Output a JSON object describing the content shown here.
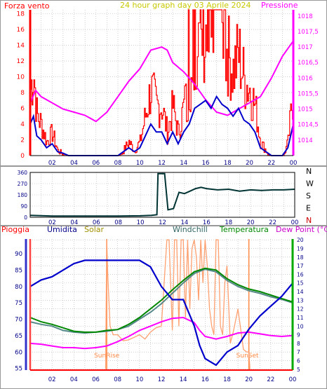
{
  "header": {
    "left_title": "Forza vento",
    "center_title": "24 hour graph day   03 Aprile 2024",
    "right_title": "Pressione"
  },
  "colors": {
    "wind_speed": "#ff0000",
    "wind_avg": "#0000cc",
    "pressure": "#ff00ff",
    "direction": "#003333",
    "humidity": "#0000cc",
    "solar": "#ffa070",
    "windchill": "#558888",
    "temperature": "#008800",
    "dew_point": "#ff00ff",
    "rain": "#ff0000",
    "border": "#999999",
    "grid": "#b0b0b0",
    "title_yellow": "#c8c800"
  },
  "chart_data": [
    {
      "type": "line",
      "name": "wind-pressure",
      "x_ticks": [
        "02",
        "04",
        "06",
        "08",
        "10",
        "12",
        "14",
        "16",
        "18",
        "20",
        "22",
        "00"
      ],
      "y_left_ticks": [
        "0",
        "2",
        "4",
        "6",
        "8",
        "10",
        "12",
        "14",
        "16",
        "18"
      ],
      "ylim_left": [
        0,
        18.5
      ],
      "y_right_ticks": [
        "1014",
        "1014,5",
        "1015",
        "1015,5",
        "1016",
        "1016,5",
        "1017",
        "1017,5",
        "1018"
      ],
      "ylim_right": [
        1013.5,
        1018.2
      ],
      "series": [
        {
          "key": "wind_avg",
          "axis": "left",
          "x": [
            0,
            0.3,
            0.6,
            1,
            1.5,
            2,
            2.5,
            3,
            3.5,
            4,
            5,
            6,
            7,
            8,
            8.5,
            9,
            9.5,
            10,
            10.5,
            11,
            11.5,
            12,
            12.5,
            13,
            13.5,
            14,
            14.5,
            15,
            15.5,
            16,
            16.5,
            17,
            17.5,
            18,
            18.5,
            19,
            19.5,
            20,
            20.5,
            21,
            22,
            23,
            23.5,
            24
          ],
          "y": [
            4,
            5,
            2.5,
            2,
            1,
            1.5,
            0.5,
            0.3,
            0,
            0,
            0,
            0,
            0,
            0,
            0.5,
            1,
            0.5,
            1,
            2.5,
            4,
            3,
            3,
            1.5,
            3,
            1.5,
            3,
            4,
            6,
            6.5,
            7,
            6,
            7.5,
            6.5,
            6,
            5,
            6,
            4.5,
            4,
            3,
            1,
            0,
            0,
            1,
            4
          ]
        },
        {
          "key": "pressure",
          "axis": "right",
          "x": [
            0,
            0.5,
            1,
            2,
            3,
            4,
            5,
            6,
            7,
            8,
            9,
            10,
            11,
            12,
            12.5,
            13,
            14,
            15,
            16,
            17,
            18,
            19,
            20,
            21,
            22,
            23,
            24
          ],
          "y": [
            1015.2,
            1015.6,
            1015.4,
            1015.2,
            1015.0,
            1014.9,
            1014.8,
            1014.6,
            1014.9,
            1015.4,
            1015.9,
            1016.3,
            1016.9,
            1017.0,
            1016.9,
            1016.5,
            1016.2,
            1015.8,
            1015.3,
            1014.9,
            1014.8,
            1015.0,
            1015.2,
            1015.4,
            1016.0,
            1016.7,
            1017.2
          ]
        }
      ]
    },
    {
      "type": "line",
      "name": "wind-direction",
      "x_ticks": [
        "02",
        "04",
        "06",
        "08",
        "10",
        "12",
        "14",
        "16",
        "18",
        "20",
        "22",
        "00"
      ],
      "y_ticks": [
        "0",
        "90",
        "180",
        "270",
        "360"
      ],
      "compass": [
        "N",
        "W",
        "S",
        "E",
        "N"
      ],
      "ylim": [
        0,
        360
      ],
      "series": [
        {
          "key": "direction",
          "x": [
            0,
            2,
            4,
            6,
            8,
            10,
            11,
            11.5,
            11.6,
            12.2,
            12.5,
            13,
            13.5,
            14,
            14.5,
            15,
            15.5,
            16,
            17,
            18,
            19,
            20,
            21,
            22,
            23,
            24
          ],
          "y": [
            15,
            10,
            10,
            10,
            10,
            12,
            15,
            20,
            350,
            350,
            60,
            70,
            200,
            190,
            210,
            230,
            240,
            230,
            220,
            225,
            210,
            220,
            215,
            220,
            220,
            225
          ]
        }
      ]
    },
    {
      "type": "line",
      "name": "humidity-temperature",
      "x_ticks": [
        "02",
        "04",
        "06",
        "08",
        "10",
        "12",
        "14",
        "16",
        "18",
        "20",
        "22",
        "00"
      ],
      "y_left_ticks": [
        "55",
        "60",
        "65",
        "70",
        "75",
        "80",
        "85",
        "90"
      ],
      "ylim_left": [
        54.5,
        94.5
      ],
      "y_right_ticks": [
        "5",
        "6",
        "7",
        "8",
        "9",
        "10",
        "11",
        "12",
        "13",
        "14",
        "15",
        "16",
        "17",
        "18",
        "19",
        "20"
      ],
      "ylim_right": [
        4.9,
        20.1
      ],
      "labels": {
        "pioggia": "Pioggia",
        "umidita": "Umidita",
        "solar": "Solar",
        "windchill": "Windchill",
        "temperatura": "Temperatura",
        "dew_point": "Dew Point (°C)",
        "sunrise": "SunRise",
        "sunset": "SunSet"
      },
      "sunrise_x": 7,
      "sunset_x": 20,
      "series": [
        {
          "key": "humidity",
          "axis": "left",
          "x": [
            0,
            1,
            2,
            3,
            4,
            5,
            6,
            7,
            8,
            9,
            10,
            11,
            12,
            12.5,
            13,
            14,
            15,
            15.5,
            16,
            16.5,
            17,
            18,
            19,
            20,
            21,
            22,
            23,
            24
          ],
          "y": [
            80,
            82,
            83,
            85,
            87,
            88,
            88,
            88,
            88,
            88,
            88,
            86,
            80,
            78,
            76,
            76,
            68,
            62,
            58,
            57,
            56,
            60,
            62,
            67,
            71,
            74,
            77,
            81
          ]
        },
        {
          "key": "temperature",
          "axis": "right",
          "x": [
            0,
            1,
            2,
            3,
            4,
            5,
            6,
            7,
            8,
            9,
            10,
            11,
            12,
            13,
            14,
            15,
            16,
            17,
            18,
            19,
            20,
            21,
            22,
            23,
            24
          ],
          "y": [
            11,
            10.5,
            10.2,
            9.8,
            9.4,
            9.3,
            9.3,
            9.5,
            9.6,
            10.2,
            11,
            12,
            13,
            14.2,
            15.3,
            16.3,
            16.7,
            16.5,
            15.5,
            14.8,
            14.3,
            14,
            13.6,
            13.2,
            12.8
          ]
        },
        {
          "key": "windchill",
          "axis": "right",
          "x": [
            0,
            1,
            2,
            3,
            4,
            5,
            6,
            7,
            8,
            9,
            10,
            11,
            12,
            13,
            14,
            15,
            16,
            17,
            18,
            19,
            20,
            21,
            22,
            23,
            24
          ],
          "y": [
            10.5,
            10.2,
            10,
            9.5,
            9.3,
            9.2,
            9.3,
            9.4,
            9.6,
            10,
            10.8,
            11.6,
            12.6,
            13.8,
            15,
            16.1,
            16.6,
            16.3,
            15.3,
            14.6,
            14.1,
            13.8,
            13.4,
            13.1,
            12.7
          ]
        },
        {
          "key": "dew_point",
          "axis": "right",
          "x": [
            0,
            1,
            2,
            3,
            4,
            5,
            6,
            7,
            8,
            9,
            10,
            11,
            12,
            13,
            14,
            15,
            15.5,
            16,
            17,
            18,
            19,
            20,
            21,
            22,
            23,
            24
          ],
          "y": [
            8,
            7.9,
            7.7,
            7.5,
            7.5,
            7.4,
            7.5,
            7.7,
            8.2,
            8.8,
            9.5,
            10,
            10.5,
            10.9,
            11,
            10.4,
            9.5,
            8.8,
            8.5,
            8.8,
            9.2,
            9.3,
            9.1,
            8.9,
            8.8,
            8.9
          ]
        },
        {
          "key": "solar",
          "axis": "right",
          "x": [
            6.9,
            7,
            7.1,
            7.3,
            7.6,
            8,
            8.5,
            9,
            9.5,
            10,
            10.5,
            11,
            11.5,
            12,
            12.5,
            12.7,
            13,
            13.2,
            13.4,
            13.6,
            13.8,
            14,
            14.2,
            14.4,
            14.6,
            14.8,
            15,
            15.2,
            15.4,
            15.6,
            15.8,
            16,
            16.2,
            16.4,
            16.6,
            16.8,
            17,
            17.2,
            17.4,
            17.6,
            17.8,
            18,
            18.3,
            18.6,
            19,
            19.5,
            19.8,
            20,
            20.1
          ],
          "y": [
            5,
            20,
            16,
            10,
            9,
            9,
            8.3,
            8.4,
            8.7,
            9,
            8.5,
            9.3,
            9.8,
            10,
            20,
            20,
            9.5,
            20,
            20,
            10,
            20,
            20,
            11,
            20,
            12,
            19,
            20,
            18,
            13,
            20,
            15,
            20,
            17,
            12,
            10,
            9,
            20,
            20,
            10,
            9,
            15,
            17,
            8,
            9.5,
            12,
            7.3,
            7,
            7,
            5
          ]
        }
      ]
    }
  ]
}
